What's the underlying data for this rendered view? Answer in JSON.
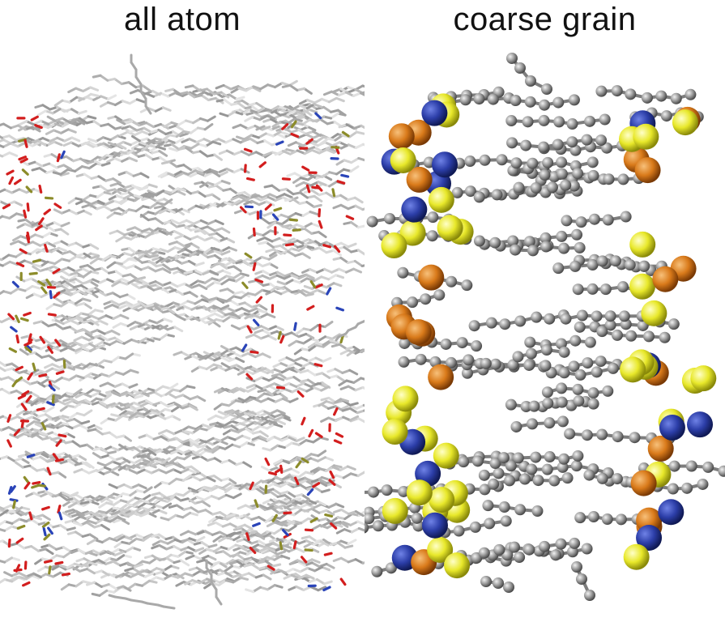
{
  "panels": [
    {
      "title": "all atom"
    },
    {
      "title": "coarse grain"
    }
  ],
  "colors": {
    "background": "#ffffff",
    "carbon_stick": "#b9b9b9",
    "oxygen": "#d31e1e",
    "nitrogen": "#2a44b8",
    "phosphorus": "#8c8c2a",
    "cg_tail_bead": "#8a8a8a",
    "cg_choline_bead": "#2c3ea8",
    "cg_phosphate_bead": "#d97a1a",
    "cg_glycerol_bead": "#e8e82a"
  }
}
